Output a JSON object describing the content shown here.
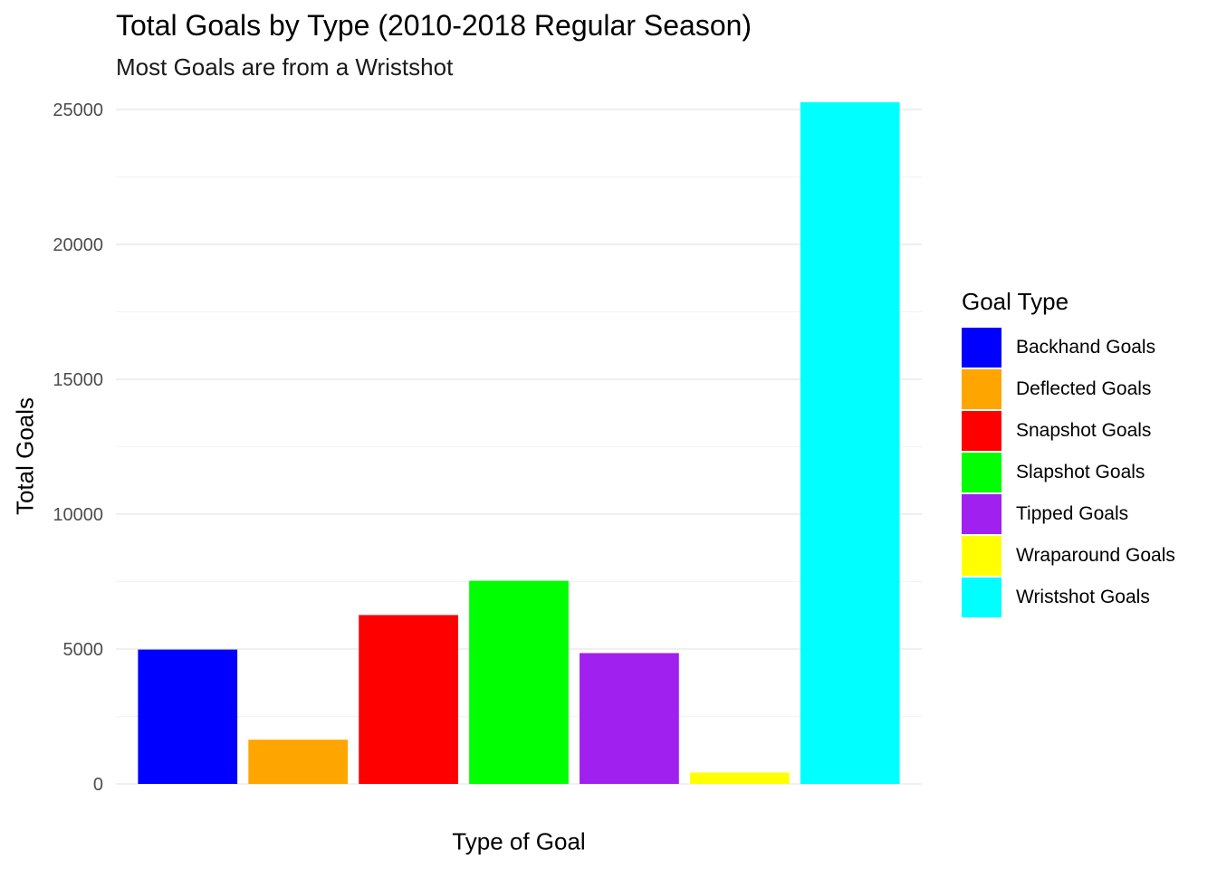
{
  "chart_data": {
    "type": "bar",
    "title": "Total Goals by Type (2010-2018 Regular Season)",
    "subtitle": "Most Goals are from a Wristshot",
    "xlabel": "Type of Goal",
    "ylabel": "Total Goals",
    "ylim": [
      0,
      25300
    ],
    "yticks": [
      0,
      5000,
      10000,
      15000,
      20000,
      25000
    ],
    "grid": true,
    "legend": {
      "title": "Goal Type",
      "placement": "right"
    },
    "categories": [
      "Backhand Goals",
      "Deflected Goals",
      "Snapshot Goals",
      "Slapshot Goals",
      "Tipped Goals",
      "Wraparound Goals",
      "Wristshot Goals"
    ],
    "values": [
      4980,
      1640,
      6260,
      7530,
      4850,
      420,
      25270
    ],
    "colors": [
      "#0000FF",
      "#FFA500",
      "#FF0000",
      "#00FF00",
      "#A020F0",
      "#FFFF00",
      "#00FFFF"
    ]
  }
}
